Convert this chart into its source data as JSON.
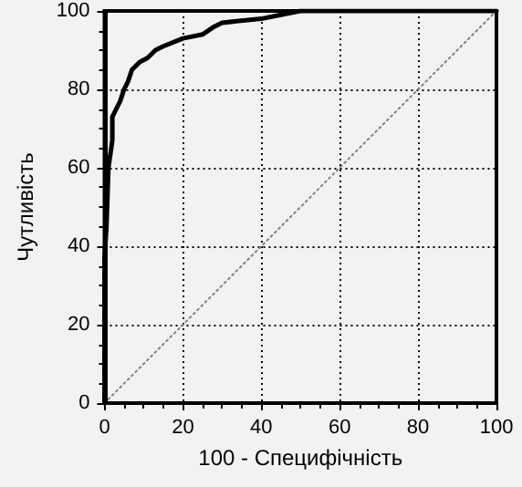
{
  "chart_data": {
    "type": "line",
    "xlabel": "100 - Специфічність",
    "ylabel": "Чутливість",
    "xlim": [
      0,
      100
    ],
    "ylim": [
      0,
      100
    ],
    "xticks": [
      0,
      {
        "value": 5,
        "label": null
      },
      {
        "value": 10,
        "label": null
      },
      {
        "value": 15,
        "label": null
      },
      20,
      {
        "value": 25,
        "label": null
      },
      {
        "value": 30,
        "label": null
      },
      {
        "value": 35,
        "label": null
      },
      40,
      {
        "value": 45,
        "label": null
      },
      {
        "value": 50,
        "label": null
      },
      {
        "value": 55,
        "label": null
      },
      60,
      {
        "value": 65,
        "label": null
      },
      {
        "value": 70,
        "label": null
      },
      {
        "value": 75,
        "label": null
      },
      80,
      {
        "value": 85,
        "label": null
      },
      {
        "value": 90,
        "label": null
      },
      {
        "value": 95,
        "label": null
      },
      100
    ],
    "yticks": [
      0,
      {
        "value": 5,
        "label": null
      },
      {
        "value": 10,
        "label": null
      },
      {
        "value": 15,
        "label": null
      },
      20,
      {
        "value": 25,
        "label": null
      },
      {
        "value": 30,
        "label": null
      },
      {
        "value": 35,
        "label": null
      },
      40,
      {
        "value": 45,
        "label": null
      },
      {
        "value": 50,
        "label": null
      },
      {
        "value": 55,
        "label": null
      },
      60,
      {
        "value": 65,
        "label": null
      },
      {
        "value": 70,
        "label": null
      },
      {
        "value": 75,
        "label": null
      },
      80,
      {
        "value": 85,
        "label": null
      },
      {
        "value": 90,
        "label": null
      },
      {
        "value": 95,
        "label": null
      },
      100
    ],
    "grid": true,
    "marker": "none",
    "series": [
      {
        "color": "#000000",
        "line_style": "solid",
        "x": [
          0,
          0,
          0.5,
          1,
          2,
          2,
          3,
          4,
          5,
          6,
          7,
          9,
          11,
          13,
          15,
          20,
          25,
          28,
          30,
          40,
          45,
          50,
          60,
          100
        ],
        "values": [
          0,
          37,
          45,
          60,
          67,
          73,
          75,
          77,
          80,
          82,
          85,
          87,
          88,
          90,
          91,
          93,
          94,
          96,
          97,
          98,
          99,
          100,
          100,
          100
        ]
      },
      {
        "color": "#808080",
        "line_style": "dotted",
        "x": [
          0,
          100
        ],
        "values": [
          0,
          100
        ]
      }
    ]
  }
}
